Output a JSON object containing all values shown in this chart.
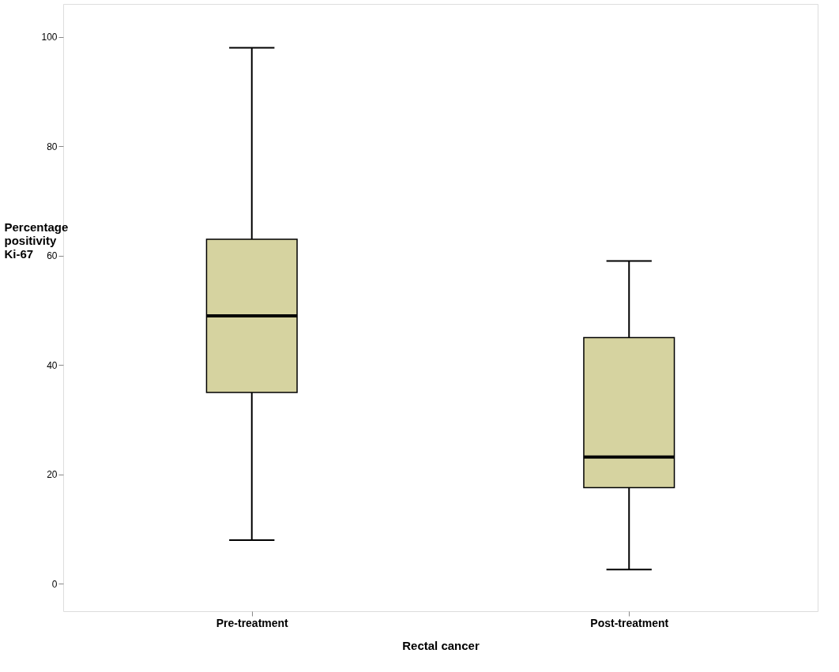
{
  "chart_data": {
    "type": "box",
    "xlabel": "Rectal cancer",
    "ylabel": "Percentage positivity Ki-67",
    "categories": [
      "Pre-treatment",
      "Post-treatment"
    ],
    "boxes": [
      {
        "low": 8,
        "q1": 35,
        "median": 49,
        "q3": 63,
        "high": 98
      },
      {
        "low": 2.6,
        "q1": 17.6,
        "median": 23.2,
        "q3": 45,
        "high": 59
      }
    ],
    "color": "#d6d3a0",
    "ylim": [
      -5,
      106
    ],
    "yticks": [
      0,
      20,
      40,
      60,
      80,
      100
    ],
    "grid": false
  }
}
